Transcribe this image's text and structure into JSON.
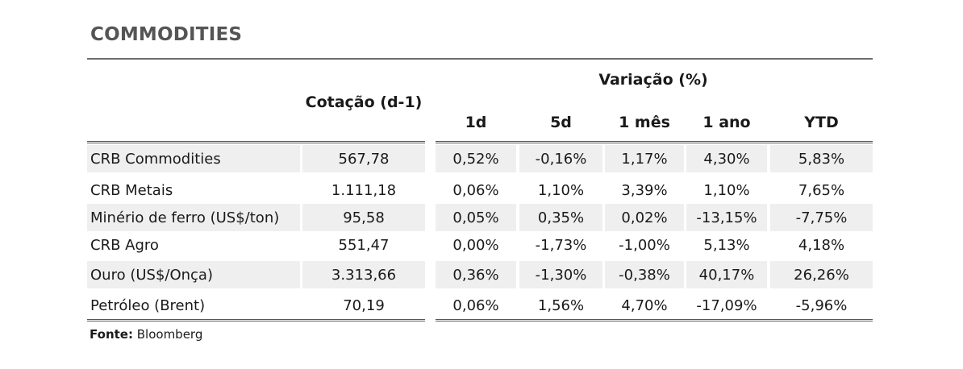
{
  "title": "COMMODITIES",
  "header": {
    "cotacao": "Cotação (d-1)",
    "variacao": "Variação (%)",
    "periods": [
      "1d",
      "5d",
      "1 mês",
      "1 ano",
      "YTD"
    ]
  },
  "rows": [
    {
      "name": "CRB Commodities",
      "cotacao": "567,78",
      "v": [
        "0,52%",
        "-0,16%",
        "1,17%",
        "4,30%",
        "5,83%"
      ]
    },
    {
      "name": "CRB Metais",
      "cotacao": "1.111,18",
      "v": [
        "0,06%",
        "1,10%",
        "3,39%",
        "1,10%",
        "7,65%"
      ]
    },
    {
      "name": "Minério de ferro (US$/ton)",
      "cotacao": "95,58",
      "v": [
        "0,05%",
        "0,35%",
        "0,02%",
        "-13,15%",
        "-7,75%"
      ]
    },
    {
      "name": "CRB Agro",
      "cotacao": "551,47",
      "v": [
        "0,00%",
        "-1,73%",
        "-1,00%",
        "5,13%",
        "4,18%"
      ]
    },
    {
      "name": "Ouro (US$/Onça)",
      "cotacao": "3.313,66",
      "v": [
        "0,36%",
        "-1,30%",
        "-0,38%",
        "40,17%",
        "26,26%"
      ]
    },
    {
      "name": "Petróleo (Brent)",
      "cotacao": "70,19",
      "v": [
        "0,06%",
        "1,56%",
        "4,70%",
        "-17,09%",
        "-5,96%"
      ]
    }
  ],
  "source": {
    "label": "Fonte:",
    "value": "Bloomberg"
  },
  "colors": {
    "title": "#555555",
    "rule": "#6e6e6e",
    "shade": "#efefef"
  }
}
